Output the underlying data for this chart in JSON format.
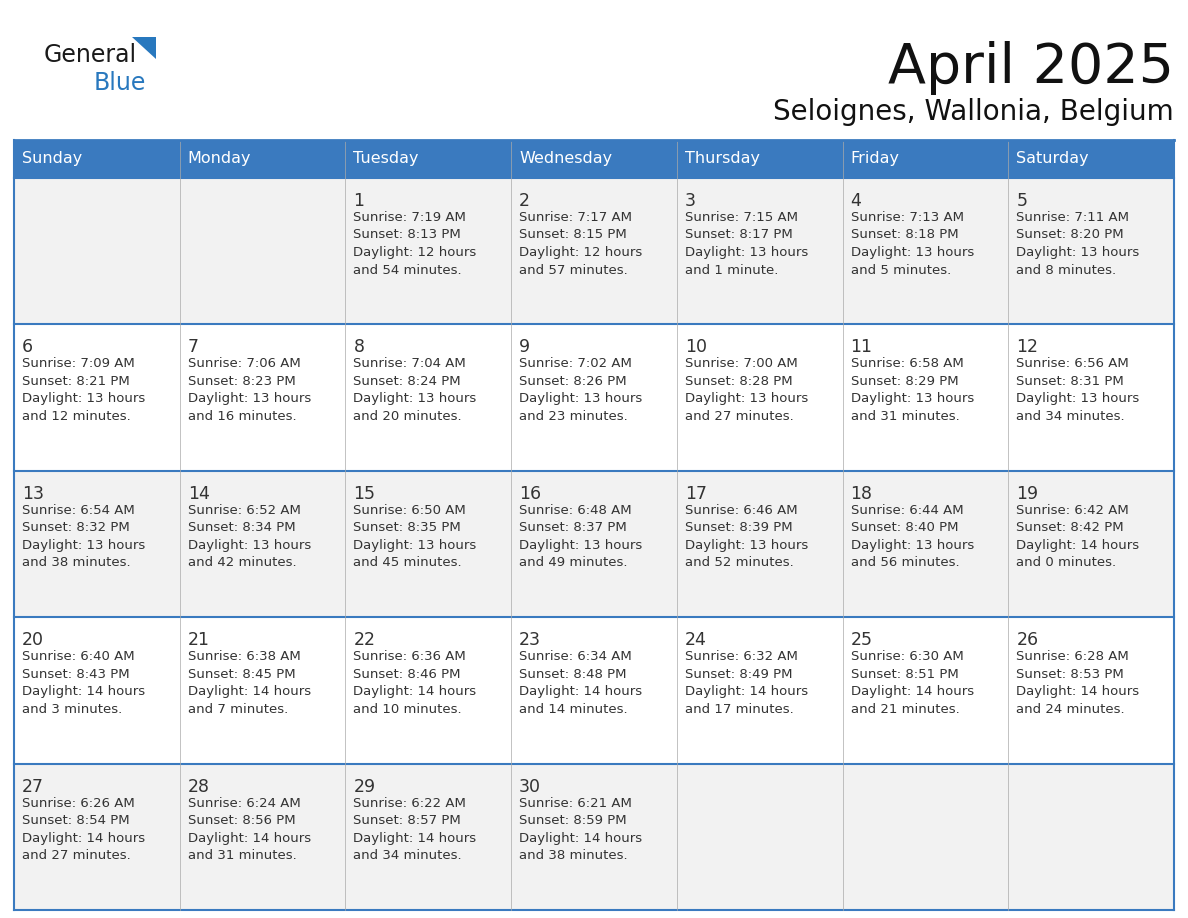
{
  "title": "April 2025",
  "subtitle": "Seloignes, Wallonia, Belgium",
  "header_color": "#3a7abf",
  "header_text_color": "#ffffff",
  "cell_bg_even": "#f2f2f2",
  "cell_bg_odd": "#ffffff",
  "text_color": "#333333",
  "border_color": "#3a7abf",
  "days_of_week": [
    "Sunday",
    "Monday",
    "Tuesday",
    "Wednesday",
    "Thursday",
    "Friday",
    "Saturday"
  ],
  "weeks": [
    [
      {
        "day": "",
        "info": ""
      },
      {
        "day": "",
        "info": ""
      },
      {
        "day": "1",
        "info": "Sunrise: 7:19 AM\nSunset: 8:13 PM\nDaylight: 12 hours\nand 54 minutes."
      },
      {
        "day": "2",
        "info": "Sunrise: 7:17 AM\nSunset: 8:15 PM\nDaylight: 12 hours\nand 57 minutes."
      },
      {
        "day": "3",
        "info": "Sunrise: 7:15 AM\nSunset: 8:17 PM\nDaylight: 13 hours\nand 1 minute."
      },
      {
        "day": "4",
        "info": "Sunrise: 7:13 AM\nSunset: 8:18 PM\nDaylight: 13 hours\nand 5 minutes."
      },
      {
        "day": "5",
        "info": "Sunrise: 7:11 AM\nSunset: 8:20 PM\nDaylight: 13 hours\nand 8 minutes."
      }
    ],
    [
      {
        "day": "6",
        "info": "Sunrise: 7:09 AM\nSunset: 8:21 PM\nDaylight: 13 hours\nand 12 minutes."
      },
      {
        "day": "7",
        "info": "Sunrise: 7:06 AM\nSunset: 8:23 PM\nDaylight: 13 hours\nand 16 minutes."
      },
      {
        "day": "8",
        "info": "Sunrise: 7:04 AM\nSunset: 8:24 PM\nDaylight: 13 hours\nand 20 minutes."
      },
      {
        "day": "9",
        "info": "Sunrise: 7:02 AM\nSunset: 8:26 PM\nDaylight: 13 hours\nand 23 minutes."
      },
      {
        "day": "10",
        "info": "Sunrise: 7:00 AM\nSunset: 8:28 PM\nDaylight: 13 hours\nand 27 minutes."
      },
      {
        "day": "11",
        "info": "Sunrise: 6:58 AM\nSunset: 8:29 PM\nDaylight: 13 hours\nand 31 minutes."
      },
      {
        "day": "12",
        "info": "Sunrise: 6:56 AM\nSunset: 8:31 PM\nDaylight: 13 hours\nand 34 minutes."
      }
    ],
    [
      {
        "day": "13",
        "info": "Sunrise: 6:54 AM\nSunset: 8:32 PM\nDaylight: 13 hours\nand 38 minutes."
      },
      {
        "day": "14",
        "info": "Sunrise: 6:52 AM\nSunset: 8:34 PM\nDaylight: 13 hours\nand 42 minutes."
      },
      {
        "day": "15",
        "info": "Sunrise: 6:50 AM\nSunset: 8:35 PM\nDaylight: 13 hours\nand 45 minutes."
      },
      {
        "day": "16",
        "info": "Sunrise: 6:48 AM\nSunset: 8:37 PM\nDaylight: 13 hours\nand 49 minutes."
      },
      {
        "day": "17",
        "info": "Sunrise: 6:46 AM\nSunset: 8:39 PM\nDaylight: 13 hours\nand 52 minutes."
      },
      {
        "day": "18",
        "info": "Sunrise: 6:44 AM\nSunset: 8:40 PM\nDaylight: 13 hours\nand 56 minutes."
      },
      {
        "day": "19",
        "info": "Sunrise: 6:42 AM\nSunset: 8:42 PM\nDaylight: 14 hours\nand 0 minutes."
      }
    ],
    [
      {
        "day": "20",
        "info": "Sunrise: 6:40 AM\nSunset: 8:43 PM\nDaylight: 14 hours\nand 3 minutes."
      },
      {
        "day": "21",
        "info": "Sunrise: 6:38 AM\nSunset: 8:45 PM\nDaylight: 14 hours\nand 7 minutes."
      },
      {
        "day": "22",
        "info": "Sunrise: 6:36 AM\nSunset: 8:46 PM\nDaylight: 14 hours\nand 10 minutes."
      },
      {
        "day": "23",
        "info": "Sunrise: 6:34 AM\nSunset: 8:48 PM\nDaylight: 14 hours\nand 14 minutes."
      },
      {
        "day": "24",
        "info": "Sunrise: 6:32 AM\nSunset: 8:49 PM\nDaylight: 14 hours\nand 17 minutes."
      },
      {
        "day": "25",
        "info": "Sunrise: 6:30 AM\nSunset: 8:51 PM\nDaylight: 14 hours\nand 21 minutes."
      },
      {
        "day": "26",
        "info": "Sunrise: 6:28 AM\nSunset: 8:53 PM\nDaylight: 14 hours\nand 24 minutes."
      }
    ],
    [
      {
        "day": "27",
        "info": "Sunrise: 6:26 AM\nSunset: 8:54 PM\nDaylight: 14 hours\nand 27 minutes."
      },
      {
        "day": "28",
        "info": "Sunrise: 6:24 AM\nSunset: 8:56 PM\nDaylight: 14 hours\nand 31 minutes."
      },
      {
        "day": "29",
        "info": "Sunrise: 6:22 AM\nSunset: 8:57 PM\nDaylight: 14 hours\nand 34 minutes."
      },
      {
        "day": "30",
        "info": "Sunrise: 6:21 AM\nSunset: 8:59 PM\nDaylight: 14 hours\nand 38 minutes."
      },
      {
        "day": "",
        "info": ""
      },
      {
        "day": "",
        "info": ""
      },
      {
        "day": "",
        "info": ""
      }
    ]
  ],
  "logo_color1": "#1a1a1a",
  "logo_color2": "#2878be"
}
